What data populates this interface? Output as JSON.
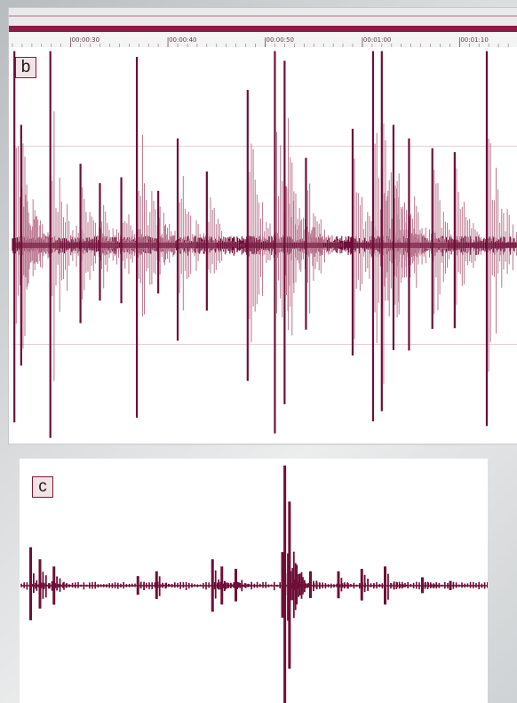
{
  "colors": {
    "waveform": "#6e0f38",
    "waveform_light": "#b9778f",
    "ruler_bar": "#8c1b45",
    "ruler_bg": "#eaeaea",
    "gridline": "#e8cdd5"
  },
  "panels": {
    "b": {
      "label": "b"
    },
    "c": {
      "label": "c"
    }
  },
  "chart_data": [
    {
      "type": "line",
      "panel": "b",
      "title": "",
      "xlabel": "",
      "ylabel": "",
      "x_unit": "time",
      "xlim_seconds": [
        24,
        76
      ],
      "ylim": [
        -1,
        1
      ],
      "time_ruler": {
        "tick_values_seconds": [
          30,
          40,
          50,
          60,
          70
        ],
        "tick_labels": [
          "00:00:30",
          "00:00:40",
          "00:00:50",
          "00:01:00",
          "00:01:10"
        ]
      },
      "gridlines_y": [
        0.5,
        -0.5
      ],
      "baseline_noise_amplitude": 0.03,
      "spike_events": [
        {
          "t": 24.2,
          "amplitude": 1.0
        },
        {
          "t": 24.9,
          "amplitude": 0.62
        },
        {
          "t": 27.9,
          "amplitude": 1.0
        },
        {
          "t": 31.0,
          "amplitude": 0.42
        },
        {
          "t": 33.0,
          "amplitude": 0.32
        },
        {
          "t": 35.2,
          "amplitude": 0.35
        },
        {
          "t": 36.8,
          "amplitude": 0.97
        },
        {
          "t": 39.0,
          "amplitude": 0.28
        },
        {
          "t": 41.0,
          "amplitude": 0.55
        },
        {
          "t": 44.0,
          "amplitude": 0.38
        },
        {
          "t": 48.2,
          "amplitude": 0.8
        },
        {
          "t": 51.0,
          "amplitude": 1.0
        },
        {
          "t": 52.0,
          "amplitude": 0.95
        },
        {
          "t": 54.2,
          "amplitude": 0.45
        },
        {
          "t": 59.0,
          "amplitude": 0.6
        },
        {
          "t": 61.1,
          "amplitude": 1.0
        },
        {
          "t": 62.0,
          "amplitude": 1.0
        },
        {
          "t": 63.2,
          "amplitude": 0.62
        },
        {
          "t": 64.8,
          "amplitude": 0.55
        },
        {
          "t": 67.2,
          "amplitude": 0.5
        },
        {
          "t": 69.5,
          "amplitude": 0.48
        },
        {
          "t": 72.8,
          "amplitude": 1.0
        }
      ]
    },
    {
      "type": "line",
      "panel": "c",
      "title": "",
      "xlabel": "",
      "ylabel": "",
      "xlim": [
        0,
        1
      ],
      "ylim": [
        -1,
        1
      ],
      "baseline_noise_amplitude": 0.02,
      "spike_events": [
        {
          "t": 0.02,
          "amplitude": 0.32
        },
        {
          "t": 0.04,
          "amplitude": 0.22
        },
        {
          "t": 0.07,
          "amplitude": 0.16
        },
        {
          "t": 0.25,
          "amplitude": 0.08
        },
        {
          "t": 0.29,
          "amplitude": 0.12
        },
        {
          "t": 0.41,
          "amplitude": 0.22
        },
        {
          "t": 0.43,
          "amplitude": 0.16
        },
        {
          "t": 0.46,
          "amplitude": 0.14
        },
        {
          "t": 0.56,
          "amplitude": 0.28
        },
        {
          "t": 0.565,
          "amplitude": 1.0
        },
        {
          "t": 0.575,
          "amplitude": 0.7
        },
        {
          "t": 0.62,
          "amplitude": 0.12
        },
        {
          "t": 0.68,
          "amplitude": 0.12
        },
        {
          "t": 0.73,
          "amplitude": 0.14
        },
        {
          "t": 0.78,
          "amplitude": 0.16
        },
        {
          "t": 0.86,
          "amplitude": 0.07
        },
        {
          "t": 0.92,
          "amplitude": 0.04
        }
      ]
    }
  ]
}
